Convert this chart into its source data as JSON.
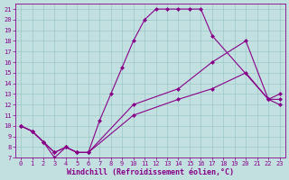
{
  "xlabel": "Windchill (Refroidissement éolien,°C)",
  "xlim": [
    -0.5,
    23.5
  ],
  "ylim": [
    7,
    21.5
  ],
  "xticks": [
    0,
    1,
    2,
    3,
    4,
    5,
    6,
    7,
    8,
    9,
    10,
    11,
    12,
    13,
    14,
    15,
    16,
    17,
    18,
    19,
    20,
    21,
    22,
    23
  ],
  "yticks": [
    7,
    8,
    9,
    10,
    11,
    12,
    13,
    14,
    15,
    16,
    17,
    18,
    19,
    20,
    21
  ],
  "bg_color": "#c2e0e0",
  "line_color": "#880088",
  "grid_color": "#9dc8c8",
  "line1_x": [
    0,
    1,
    2,
    3,
    4,
    5,
    6,
    10,
    14,
    17,
    20,
    22,
    23
  ],
  "line1_y": [
    10,
    9.5,
    8.5,
    7.5,
    8.0,
    7.5,
    7.5,
    11.0,
    12.5,
    13.5,
    15.0,
    12.5,
    12.5
  ],
  "line2_x": [
    0,
    1,
    2,
    3,
    4,
    5,
    6,
    10,
    14,
    17,
    20,
    22,
    23
  ],
  "line2_y": [
    10.0,
    9.5,
    8.5,
    7.5,
    8.0,
    7.5,
    7.5,
    12.0,
    13.5,
    16.0,
    18.0,
    12.5,
    13.0
  ],
  "line3_x": [
    0,
    1,
    2,
    3,
    4,
    5,
    6,
    7,
    8,
    9,
    10,
    11,
    12,
    13,
    14,
    15,
    16,
    17,
    22,
    23
  ],
  "line3_y": [
    10.0,
    9.5,
    8.5,
    7.0,
    8.0,
    7.5,
    7.5,
    10.5,
    13.0,
    15.5,
    18.0,
    20.0,
    21.0,
    21.0,
    21.0,
    21.0,
    21.0,
    18.5,
    12.5,
    12.0
  ],
  "marker": "D",
  "markersize": 2.5,
  "linewidth": 0.8,
  "tick_fontsize": 5.0,
  "label_fontsize": 6.0
}
